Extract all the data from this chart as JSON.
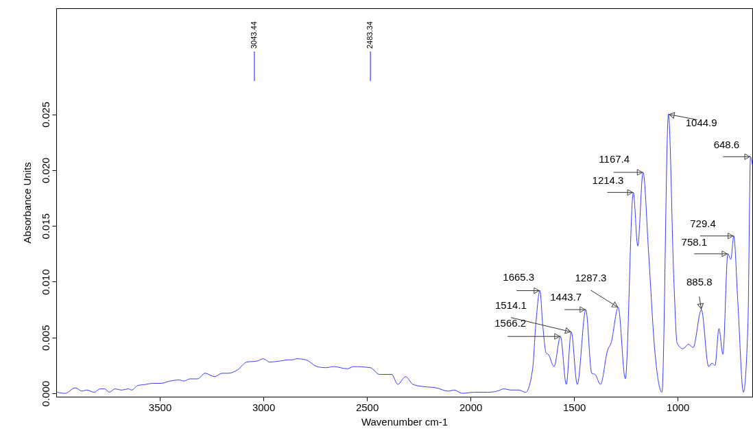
{
  "chart_data": {
    "type": "line",
    "xlabel": "Wavenumber cm-1",
    "ylabel": "Absorbance Units",
    "xlim": [
      4000,
      640
    ],
    "xticks": [
      3500,
      3000,
      2500,
      2000,
      1500,
      1000
    ],
    "ylim": [
      -0.0003,
      0.0345
    ],
    "yticks": [
      {
        "value": 0,
        "label": "0.000"
      },
      {
        "value": 0.005,
        "label": "0.005"
      },
      {
        "value": 0.01,
        "label": "0.010"
      },
      {
        "value": 0.015,
        "label": "0.015"
      },
      {
        "value": 0.02,
        "label": "0.020"
      },
      {
        "value": 0.025,
        "label": "0.025"
      }
    ],
    "grid": false,
    "marker": "none",
    "ref_lines": [
      {
        "axis": "x",
        "value": 3043.44,
        "label": "3043.44"
      },
      {
        "axis": "x",
        "value": 2483.34,
        "label": "2483.34"
      }
    ],
    "line_style": "solid",
    "series": [
      {
        "color": "#3a3aff",
        "x": [
          3996,
          3958,
          3908,
          3875,
          3853,
          3817,
          3788,
          3766,
          3744,
          3717,
          3685,
          3651,
          3636,
          3606,
          3569,
          3532,
          3495,
          3451,
          3406,
          3384,
          3355,
          3318,
          3281,
          3236,
          3199,
          3170,
          3125,
          3081,
          3030,
          3000,
          2971,
          2919,
          2882,
          2863,
          2838,
          2794,
          2742,
          2698,
          2661,
          2595,
          2565,
          2484,
          2440,
          2381,
          2351,
          2314,
          2278,
          2226,
          2167,
          2108,
          2078,
          2041,
          1982,
          1916,
          1872,
          1839,
          1805,
          1768,
          1734,
          1701,
          1685,
          1665.3,
          1652,
          1635,
          1625,
          1597,
          1566.2,
          1538,
          1514.1,
          1485,
          1443.7,
          1415,
          1399,
          1373,
          1338,
          1322,
          1287.3,
          1253,
          1214.3,
          1193,
          1167.4,
          1140,
          1112,
          1076,
          1044.9,
          1019,
          1003,
          975,
          948,
          926,
          885.8,
          851,
          835,
          820,
          801,
          782,
          758.1,
          744,
          729.4,
          710,
          683,
          661,
          648.6,
          640
        ],
        "values": [
          0.0001,
          0.0,
          0.0005,
          0.0002,
          0.0003,
          0.0001,
          0.0004,
          0.0004,
          0.0001,
          0.0004,
          0.0003,
          0.0004,
          0.0003,
          0.0007,
          0.0008,
          0.0009,
          0.0009,
          0.0011,
          0.0012,
          0.0011,
          0.0013,
          0.0013,
          0.0018,
          0.0015,
          0.0018,
          0.0018,
          0.0021,
          0.0028,
          0.0029,
          0.0031,
          0.0028,
          0.0029,
          0.003,
          0.003,
          0.0031,
          0.003,
          0.0024,
          0.0023,
          0.0024,
          0.0022,
          0.0024,
          0.0023,
          0.0017,
          0.0017,
          0.0008,
          0.0015,
          0.0008,
          0.0006,
          0.0005,
          0.0002,
          0.0003,
          0.0,
          0.0001,
          0.0001,
          0.0002,
          0.0004,
          0.0003,
          0.0003,
          0.0001,
          0.0021,
          0.0062,
          0.0092,
          0.0062,
          0.0036,
          0.0035,
          0.0024,
          0.0051,
          0.0008,
          0.0055,
          0.0008,
          0.0075,
          0.0018,
          0.0017,
          0.0008,
          0.0039,
          0.0045,
          0.0077,
          0.0013,
          0.018,
          0.0132,
          0.0198,
          0.0124,
          0.0041,
          0.0001,
          0.025,
          0.0103,
          0.0045,
          0.004,
          0.0044,
          0.0041,
          0.0075,
          0.0024,
          0.0027,
          0.0025,
          0.0058,
          0.0035,
          0.0125,
          0.012,
          0.0141,
          0.0082,
          0.0001,
          0.0063,
          0.0212,
          0.0205
        ]
      }
    ],
    "annotations": [
      {
        "text": "1665.3",
        "x": 1665.3,
        "y": 0.0092
      },
      {
        "text": "1566.2",
        "x": 1566.2,
        "y": 0.0051
      },
      {
        "text": "1514.1",
        "x": 1514.1,
        "y": 0.0055
      },
      {
        "text": "1443.7",
        "x": 1443.7,
        "y": 0.0075
      },
      {
        "text": "1287.3",
        "x": 1287.3,
        "y": 0.0077
      },
      {
        "text": "1214.3",
        "x": 1214.3,
        "y": 0.018
      },
      {
        "text": "1167.4",
        "x": 1167.4,
        "y": 0.0198
      },
      {
        "text": "1044.9",
        "x": 1044.9,
        "y": 0.025
      },
      {
        "text": "885.8",
        "x": 885.8,
        "y": 0.0075
      },
      {
        "text": "758.1",
        "x": 758.1,
        "y": 0.0125
      },
      {
        "text": "729.4",
        "x": 729.4,
        "y": 0.0141
      },
      {
        "text": "648.6",
        "x": 648.6,
        "y": 0.0212
      }
    ]
  }
}
